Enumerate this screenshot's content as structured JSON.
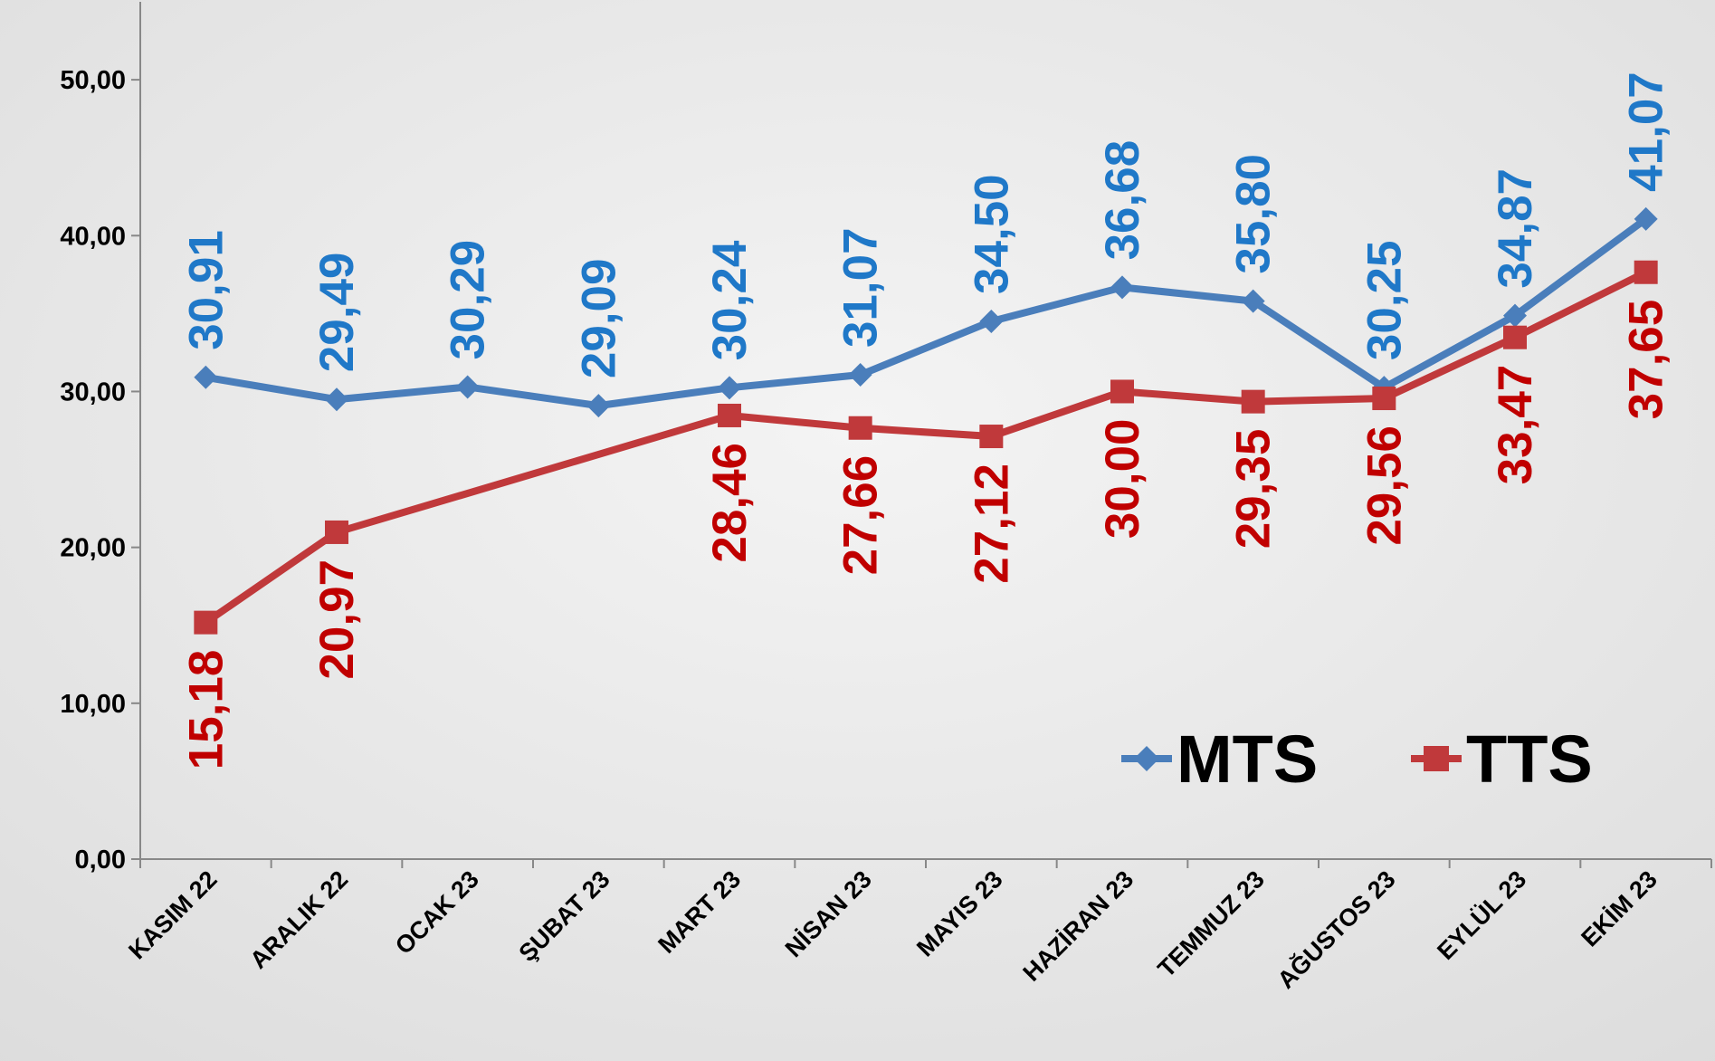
{
  "chart_data": {
    "type": "line",
    "categories": [
      "KASIM 22",
      "ARALIK 22",
      "OCAK 23",
      "ŞUBAT 23",
      "MART 23",
      "NİSAN 23",
      "MAYIS 23",
      "HAZİRAN 23",
      "TEMMUZ 23",
      "AĞUSTOS 23",
      "EYLÜL 23",
      "EKİM 23"
    ],
    "series": [
      {
        "name": "MTS",
        "color": "#4a7ebb",
        "label_color": "#1f78c8",
        "marker": "diamond",
        "values": [
          30.91,
          29.49,
          30.29,
          29.09,
          30.24,
          31.07,
          34.5,
          36.68,
          35.8,
          30.25,
          34.87,
          41.07
        ],
        "value_labels": [
          "30,91",
          "29,49",
          "30,29",
          "29,09",
          "30,24",
          "31,07",
          "34,50",
          "36,68",
          "35,80",
          "30,25",
          "34,87",
          "41,07"
        ]
      },
      {
        "name": "TTS",
        "color": "#c0393b",
        "label_color": "#c00000",
        "marker": "square",
        "values": [
          15.18,
          20.97,
          null,
          null,
          28.46,
          27.66,
          27.12,
          30.0,
          29.35,
          29.56,
          33.47,
          37.65
        ],
        "value_labels": [
          "15,18",
          "20,97",
          null,
          null,
          "28,46",
          "27,66",
          "27,12",
          "30,00",
          "29,35",
          "29,56",
          "33,47",
          "37,65"
        ]
      }
    ],
    "connect_gaps": true,
    "ylim": [
      0,
      55
    ],
    "yticks": [
      {
        "value": 0,
        "label": "0,00"
      },
      {
        "value": 10,
        "label": "10,00"
      },
      {
        "value": 20,
        "label": "20,00"
      },
      {
        "value": 30,
        "label": "30,00"
      },
      {
        "value": 40,
        "label": "40,00"
      },
      {
        "value": 50,
        "label": "50,00"
      }
    ],
    "legend": "lower right"
  }
}
